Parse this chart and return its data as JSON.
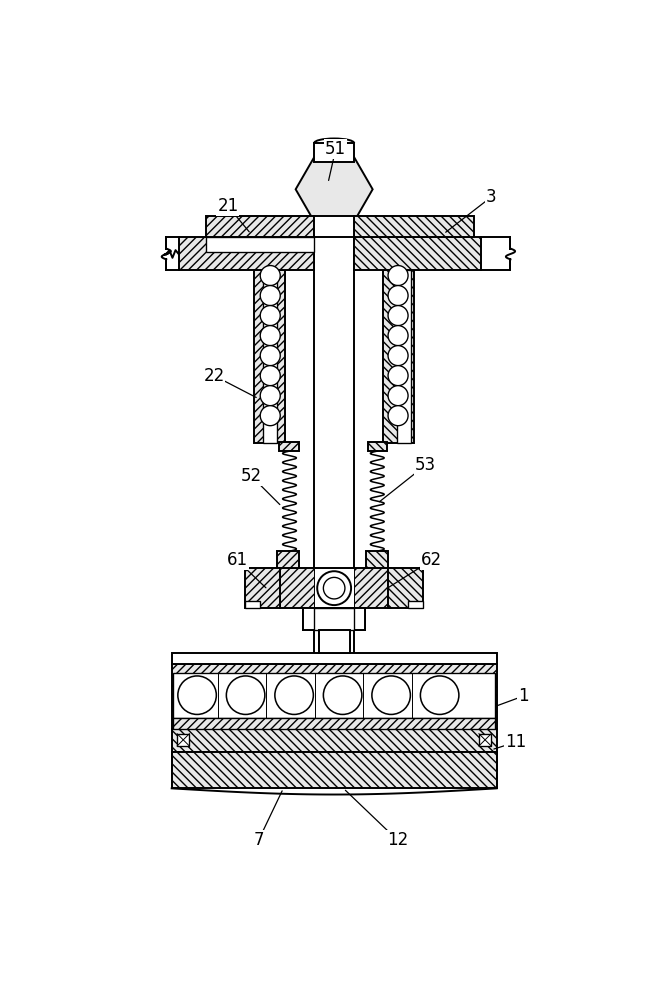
{
  "bg": "#ffffff",
  "fc_hatch": "#e8e8e8",
  "lw": 1.4,
  "annotations": [
    [
      "51",
      328,
      38,
      318,
      82
    ],
    [
      "21",
      188,
      112,
      218,
      148
    ],
    [
      "3",
      530,
      100,
      468,
      148
    ],
    [
      "22",
      170,
      332,
      228,
      362
    ],
    [
      "52",
      218,
      462,
      258,
      502
    ],
    [
      "53",
      445,
      448,
      382,
      498
    ],
    [
      "61",
      200,
      572,
      240,
      610
    ],
    [
      "62",
      452,
      572,
      392,
      610
    ],
    [
      "1",
      572,
      748,
      534,
      762
    ],
    [
      "11",
      562,
      808,
      530,
      818
    ],
    [
      "7",
      228,
      935,
      260,
      868
    ],
    [
      "12",
      408,
      935,
      338,
      868
    ]
  ]
}
